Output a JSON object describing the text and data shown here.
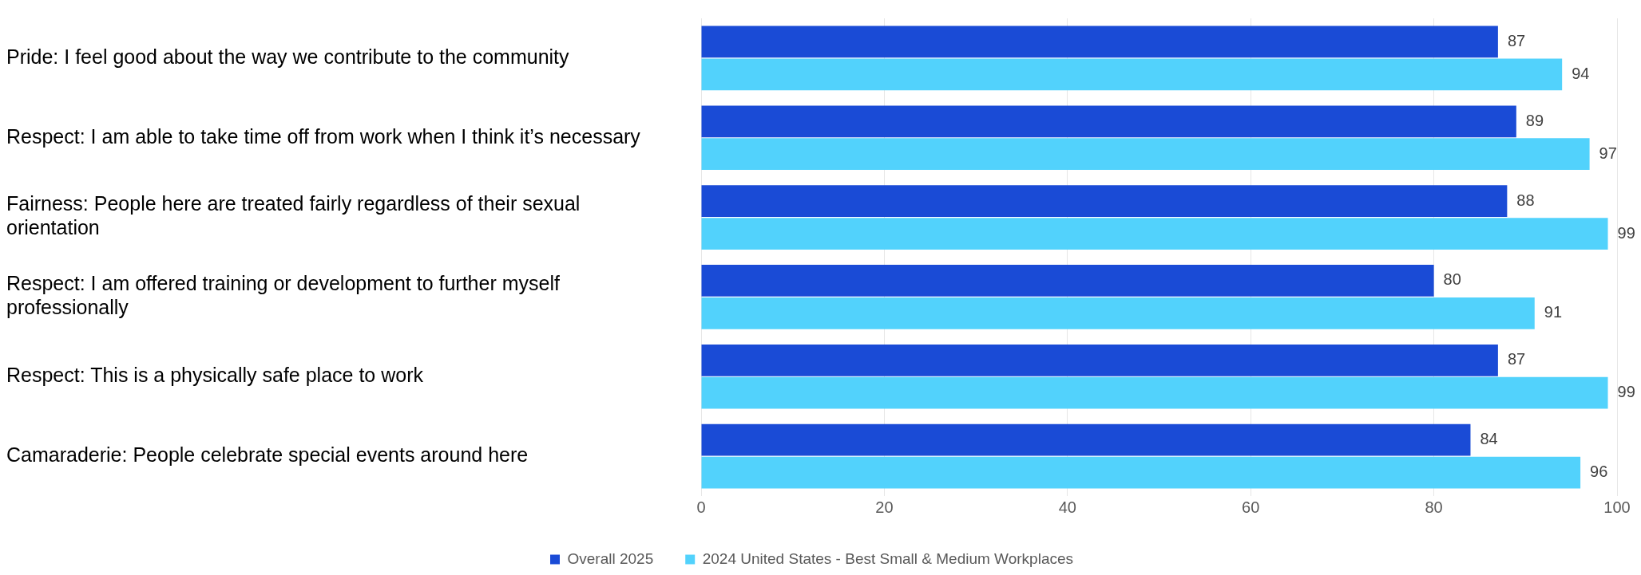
{
  "chart_data": {
    "type": "bar",
    "orientation": "horizontal",
    "categories": [
      "Pride: I feel good about the way we contribute to the community",
      "Respect: I am able to take time off from work when I think it’s necessary",
      "Fairness: People here are treated fairly regardless of their sexual orientation",
      "Respect: I am offered training or development to further myself professionally",
      "Respect: This is a physically safe place to work",
      "Camaraderie: People celebrate special events around here"
    ],
    "series": [
      {
        "name": "Overall 2025",
        "color": "#1a4bd6",
        "values": [
          87,
          89,
          88,
          80,
          87,
          84
        ]
      },
      {
        "name": "2024 United States - Best Small & Medium Workplaces",
        "color": "#52d2fc",
        "values": [
          94,
          97,
          99,
          91,
          99,
          96
        ]
      }
    ],
    "xlim": [
      0,
      100
    ],
    "xticks": [
      0,
      20,
      40,
      60,
      80,
      100
    ],
    "grid": "x",
    "legend": "bottom",
    "data_labels": true
  }
}
